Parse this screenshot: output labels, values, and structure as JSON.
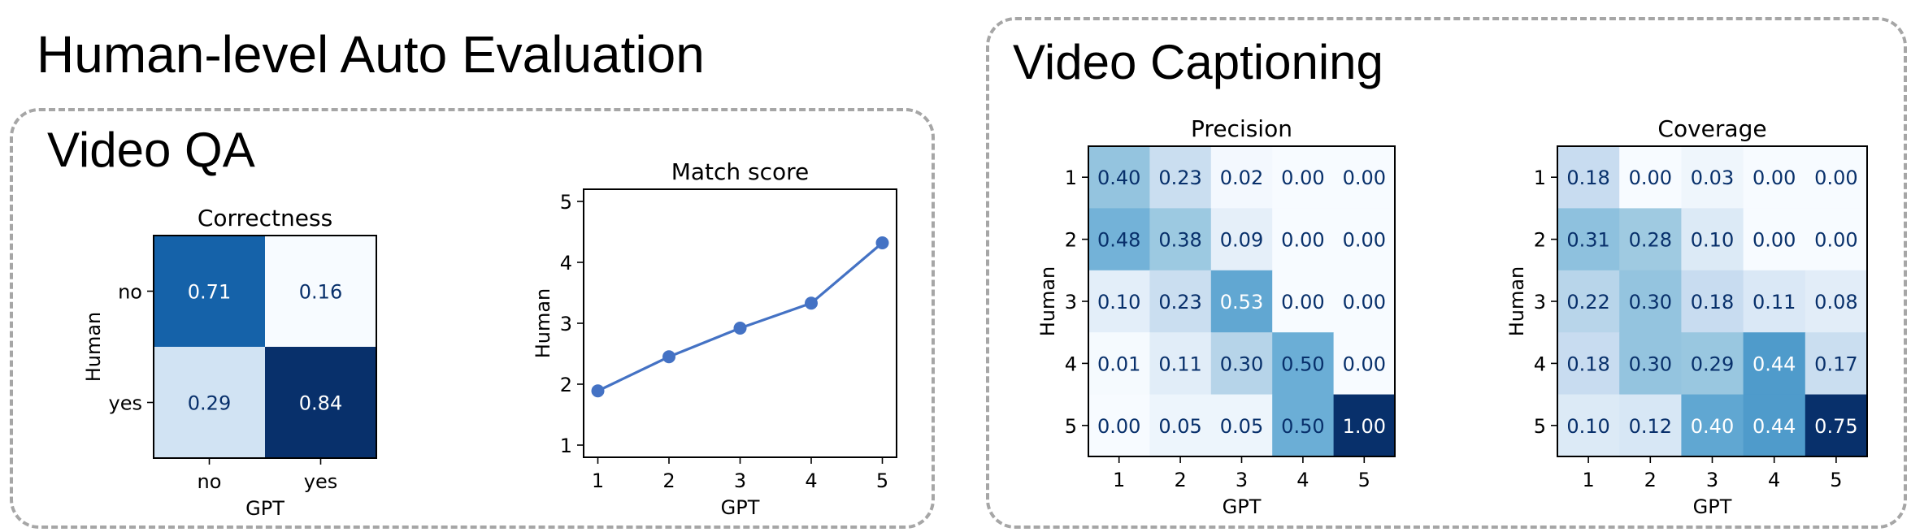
{
  "page": {
    "title": "Human-level Auto Evaluation",
    "qa_section_title": "Video QA",
    "caption_section_title": "Video Captioning"
  },
  "colors": {
    "box_border": "#a6a6a6",
    "line_color": "#4472c4",
    "cmap": "Blues"
  },
  "chart_data": [
    {
      "type": "heatmap",
      "title": "Correctness",
      "xlabel": "GPT",
      "ylabel": "Human",
      "x_categories": [
        "no",
        "yes"
      ],
      "y_categories": [
        "no",
        "yes"
      ],
      "values": [
        [
          0.71,
          0.16
        ],
        [
          0.29,
          0.84
        ]
      ],
      "labels": [
        [
          "0.71",
          "0.16"
        ],
        [
          "0.29",
          "0.84"
        ]
      ]
    },
    {
      "type": "line",
      "title": "Match score",
      "xlabel": "GPT",
      "ylabel": "Human",
      "x": [
        1,
        2,
        3,
        4,
        5
      ],
      "y": [
        1.89,
        2.45,
        2.92,
        3.33,
        4.32
      ],
      "xlim": [
        0.8,
        5.2
      ],
      "ylim": [
        0.8,
        5.2
      ],
      "xticks": [
        "1",
        "2",
        "3",
        "4",
        "5"
      ],
      "yticks": [
        "1",
        "2",
        "3",
        "4",
        "5"
      ],
      "marker": "circle",
      "grid": false
    },
    {
      "type": "heatmap",
      "title": "Precision",
      "xlabel": "GPT",
      "ylabel": "Human",
      "x_categories": [
        "1",
        "2",
        "3",
        "4",
        "5"
      ],
      "y_categories": [
        "1",
        "2",
        "3",
        "4",
        "5"
      ],
      "values": [
        [
          0.4,
          0.23,
          0.02,
          0.0,
          0.0
        ],
        [
          0.48,
          0.38,
          0.09,
          0.0,
          0.0
        ],
        [
          0.1,
          0.23,
          0.53,
          0.0,
          0.0
        ],
        [
          0.01,
          0.11,
          0.3,
          0.5,
          0.0
        ],
        [
          0.0,
          0.05,
          0.05,
          0.5,
          1.0
        ]
      ],
      "labels": [
        [
          "0.40",
          "0.23",
          "0.02",
          "0.00",
          "0.00"
        ],
        [
          "0.48",
          "0.38",
          "0.09",
          "0.00",
          "0.00"
        ],
        [
          "0.10",
          "0.23",
          "0.53",
          "0.00",
          "0.00"
        ],
        [
          "0.01",
          "0.11",
          "0.30",
          "0.50",
          "0.00"
        ],
        [
          "0.00",
          "0.05",
          "0.05",
          "0.50",
          "1.00"
        ]
      ]
    },
    {
      "type": "heatmap",
      "title": "Coverage",
      "xlabel": "GPT",
      "ylabel": "Human",
      "x_categories": [
        "1",
        "2",
        "3",
        "4",
        "5"
      ],
      "y_categories": [
        "1",
        "2",
        "3",
        "4",
        "5"
      ],
      "values": [
        [
          0.18,
          0.0,
          0.03,
          0.0,
          0.0
        ],
        [
          0.31,
          0.28,
          0.1,
          0.0,
          0.0
        ],
        [
          0.22,
          0.3,
          0.18,
          0.11,
          0.08
        ],
        [
          0.18,
          0.3,
          0.29,
          0.44,
          0.17
        ],
        [
          0.1,
          0.12,
          0.4,
          0.44,
          0.75
        ]
      ],
      "labels": [
        [
          "0.18",
          "0.00",
          "0.03",
          "0.00",
          "0.00"
        ],
        [
          "0.31",
          "0.28",
          "0.10",
          "0.00",
          "0.00"
        ],
        [
          "0.22",
          "0.30",
          "0.18",
          "0.11",
          "0.08"
        ],
        [
          "0.18",
          "0.30",
          "0.29",
          "0.44",
          "0.17"
        ],
        [
          "0.10",
          "0.12",
          "0.40",
          "0.44",
          "0.75"
        ]
      ]
    }
  ]
}
